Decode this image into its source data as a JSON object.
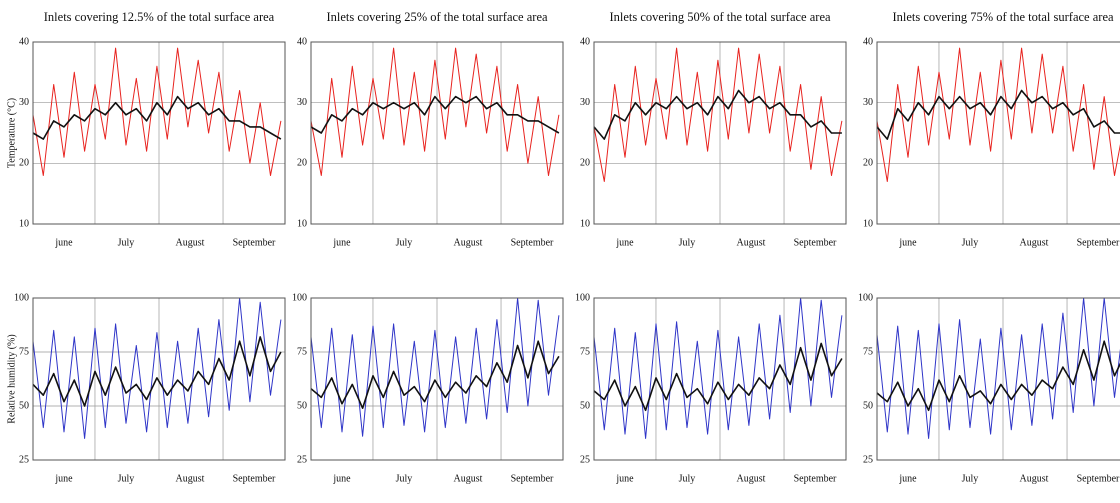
{
  "chart_data": [
    {
      "type": "line",
      "title": "Inlets covering 12.5% of the total surface area",
      "ylabel": "Temperature (°C)",
      "x": [
        0,
        5,
        10,
        15,
        20,
        25,
        30,
        35,
        40,
        45,
        50,
        55,
        60,
        65,
        70,
        75,
        80,
        85,
        90,
        95,
        100,
        105,
        110,
        115,
        120
      ],
      "series": [
        {
          "color": "#e8231f",
          "values": [
            28,
            18,
            33,
            21,
            35,
            22,
            33,
            24,
            39,
            23,
            34,
            22,
            36,
            24,
            39,
            26,
            37,
            25,
            35,
            22,
            32,
            20,
            30,
            18,
            27
          ]
        },
        {
          "color": "#111111",
          "values": [
            25,
            24,
            27,
            26,
            28,
            27,
            29,
            28,
            30,
            28,
            29,
            27,
            30,
            28,
            31,
            29,
            30,
            28,
            29,
            27,
            27,
            26,
            26,
            25,
            24
          ]
        }
      ],
      "xlim": [
        0,
        122
      ],
      "xticks": [
        {
          "value": 15,
          "label": "june"
        },
        {
          "value": 45,
          "label": "July"
        },
        {
          "value": 76,
          "label": "August"
        },
        {
          "value": 107,
          "label": "September"
        }
      ],
      "xgrid": [
        30,
        61,
        92
      ],
      "ylim": [
        10,
        40
      ],
      "yticks": [
        10,
        20,
        30,
        40
      ]
    },
    {
      "type": "line",
      "title": "Inlets covering 25% of the total surface area",
      "x": [
        0,
        5,
        10,
        15,
        20,
        25,
        30,
        35,
        40,
        45,
        50,
        55,
        60,
        65,
        70,
        75,
        80,
        85,
        90,
        95,
        100,
        105,
        110,
        115,
        120
      ],
      "series": [
        {
          "color": "#e8231f",
          "values": [
            27,
            18,
            34,
            21,
            36,
            23,
            34,
            24,
            39,
            23,
            35,
            22,
            37,
            24,
            39,
            26,
            38,
            25,
            36,
            22,
            33,
            20,
            31,
            18,
            28
          ]
        },
        {
          "color": "#111111",
          "values": [
            26,
            25,
            28,
            27,
            29,
            28,
            30,
            29,
            30,
            29,
            30,
            28,
            31,
            29,
            31,
            30,
            31,
            29,
            30,
            28,
            28,
            27,
            27,
            26,
            25
          ]
        }
      ],
      "xlim": [
        0,
        122
      ],
      "xticks": [
        {
          "value": 15,
          "label": "june"
        },
        {
          "value": 45,
          "label": "July"
        },
        {
          "value": 76,
          "label": "August"
        },
        {
          "value": 107,
          "label": "September"
        }
      ],
      "xgrid": [
        30,
        61,
        92
      ],
      "ylim": [
        10,
        40
      ],
      "yticks": [
        10,
        20,
        30,
        40
      ]
    },
    {
      "type": "line",
      "title": "Inlets covering 50% of the total surface area",
      "x": [
        0,
        5,
        10,
        15,
        20,
        25,
        30,
        35,
        40,
        45,
        50,
        55,
        60,
        65,
        70,
        75,
        80,
        85,
        90,
        95,
        100,
        105,
        110,
        115,
        120
      ],
      "series": [
        {
          "color": "#e8231f",
          "values": [
            26,
            17,
            33,
            21,
            36,
            23,
            34,
            24,
            39,
            23,
            35,
            22,
            37,
            24,
            39,
            25,
            38,
            25,
            36,
            22,
            33,
            19,
            31,
            18,
            27
          ]
        },
        {
          "color": "#111111",
          "values": [
            26,
            24,
            28,
            27,
            30,
            28,
            30,
            29,
            31,
            29,
            30,
            28,
            31,
            29,
            32,
            30,
            31,
            29,
            30,
            28,
            28,
            26,
            27,
            25,
            25
          ]
        }
      ],
      "xlim": [
        0,
        122
      ],
      "xticks": [
        {
          "value": 15,
          "label": "june"
        },
        {
          "value": 45,
          "label": "July"
        },
        {
          "value": 76,
          "label": "August"
        },
        {
          "value": 107,
          "label": "September"
        }
      ],
      "xgrid": [
        30,
        61,
        92
      ],
      "ylim": [
        10,
        40
      ],
      "yticks": [
        10,
        20,
        30,
        40
      ]
    },
    {
      "type": "line",
      "title": "Inlets covering 75% of the total surface area",
      "x": [
        0,
        5,
        10,
        15,
        20,
        25,
        30,
        35,
        40,
        45,
        50,
        55,
        60,
        65,
        70,
        75,
        80,
        85,
        90,
        95,
        100,
        105,
        110,
        115,
        120
      ],
      "series": [
        {
          "color": "#e8231f",
          "values": [
            27,
            17,
            33,
            21,
            36,
            23,
            35,
            24,
            39,
            23,
            35,
            22,
            37,
            24,
            39,
            25,
            38,
            25,
            36,
            22,
            33,
            19,
            31,
            18,
            27
          ]
        },
        {
          "color": "#111111",
          "values": [
            26,
            24,
            29,
            27,
            30,
            28,
            31,
            29,
            31,
            29,
            30,
            28,
            31,
            29,
            32,
            30,
            31,
            29,
            30,
            28,
            29,
            26,
            27,
            25,
            25
          ]
        }
      ],
      "xlim": [
        0,
        122
      ],
      "xticks": [
        {
          "value": 15,
          "label": "june"
        },
        {
          "value": 45,
          "label": "July"
        },
        {
          "value": 76,
          "label": "August"
        },
        {
          "value": 107,
          "label": "September"
        }
      ],
      "xgrid": [
        30,
        61,
        92
      ],
      "ylim": [
        10,
        40
      ],
      "yticks": [
        10,
        20,
        30,
        40
      ]
    },
    {
      "type": "line",
      "ylabel": "Relative humidity (%)",
      "x": [
        0,
        5,
        10,
        15,
        20,
        25,
        30,
        35,
        40,
        45,
        50,
        55,
        60,
        65,
        70,
        75,
        80,
        85,
        90,
        95,
        100,
        105,
        110,
        115,
        120
      ],
      "series": [
        {
          "color": "#2f35c8",
          "values": [
            80,
            40,
            85,
            38,
            82,
            35,
            86,
            40,
            88,
            42,
            78,
            38,
            84,
            40,
            80,
            42,
            86,
            45,
            90,
            48,
            100,
            52,
            98,
            55,
            90
          ]
        },
        {
          "color": "#111111",
          "values": [
            60,
            55,
            65,
            52,
            62,
            50,
            66,
            55,
            68,
            56,
            60,
            53,
            63,
            55,
            62,
            57,
            66,
            60,
            72,
            62,
            80,
            64,
            82,
            66,
            75
          ]
        }
      ],
      "xlim": [
        0,
        122
      ],
      "xticks": [
        {
          "value": 15,
          "label": "june"
        },
        {
          "value": 45,
          "label": "July"
        },
        {
          "value": 76,
          "label": "August"
        },
        {
          "value": 107,
          "label": "September"
        }
      ],
      "xgrid": [
        30,
        61,
        92
      ],
      "ylim": [
        25,
        100
      ],
      "yticks": [
        25,
        50,
        75,
        100
      ]
    },
    {
      "type": "line",
      "x": [
        0,
        5,
        10,
        15,
        20,
        25,
        30,
        35,
        40,
        45,
        50,
        55,
        60,
        65,
        70,
        75,
        80,
        85,
        90,
        95,
        100,
        105,
        110,
        115,
        120
      ],
      "series": [
        {
          "color": "#2f35c8",
          "values": [
            82,
            40,
            86,
            38,
            83,
            36,
            87,
            40,
            88,
            41,
            80,
            38,
            85,
            40,
            82,
            42,
            86,
            44,
            90,
            47,
            100,
            50,
            99,
            55,
            92
          ]
        },
        {
          "color": "#111111",
          "values": [
            58,
            54,
            63,
            51,
            60,
            49,
            64,
            54,
            66,
            55,
            59,
            52,
            62,
            54,
            61,
            56,
            64,
            59,
            70,
            61,
            78,
            63,
            80,
            65,
            73
          ]
        }
      ],
      "xlim": [
        0,
        122
      ],
      "xticks": [
        {
          "value": 15,
          "label": "june"
        },
        {
          "value": 45,
          "label": "July"
        },
        {
          "value": 76,
          "label": "August"
        },
        {
          "value": 107,
          "label": "September"
        }
      ],
      "xgrid": [
        30,
        61,
        92
      ],
      "ylim": [
        25,
        100
      ],
      "yticks": [
        25,
        50,
        75,
        100
      ]
    },
    {
      "type": "line",
      "x": [
        0,
        5,
        10,
        15,
        20,
        25,
        30,
        35,
        40,
        45,
        50,
        55,
        60,
        65,
        70,
        75,
        80,
        85,
        90,
        95,
        100,
        105,
        110,
        115,
        120
      ],
      "series": [
        {
          "color": "#2f35c8",
          "values": [
            82,
            39,
            86,
            37,
            84,
            35,
            88,
            39,
            89,
            40,
            80,
            37,
            85,
            39,
            82,
            41,
            88,
            44,
            92,
            47,
            100,
            50,
            99,
            54,
            92
          ]
        },
        {
          "color": "#111111",
          "values": [
            57,
            53,
            62,
            50,
            59,
            48,
            63,
            53,
            65,
            54,
            58,
            51,
            61,
            53,
            60,
            55,
            63,
            58,
            69,
            60,
            77,
            62,
            79,
            64,
            72
          ]
        }
      ],
      "xlim": [
        0,
        122
      ],
      "xticks": [
        {
          "value": 15,
          "label": "june"
        },
        {
          "value": 45,
          "label": "July"
        },
        {
          "value": 76,
          "label": "August"
        },
        {
          "value": 107,
          "label": "September"
        }
      ],
      "xgrid": [
        30,
        61,
        92
      ],
      "ylim": [
        25,
        100
      ],
      "yticks": [
        25,
        50,
        75,
        100
      ]
    },
    {
      "type": "line",
      "x": [
        0,
        5,
        10,
        15,
        20,
        25,
        30,
        35,
        40,
        45,
        50,
        55,
        60,
        65,
        70,
        75,
        80,
        85,
        90,
        95,
        100,
        105,
        110,
        115,
        120
      ],
      "series": [
        {
          "color": "#2f35c8",
          "values": [
            83,
            38,
            87,
            37,
            85,
            35,
            88,
            39,
            90,
            40,
            81,
            37,
            86,
            39,
            83,
            41,
            88,
            44,
            93,
            47,
            100,
            50,
            100,
            54,
            93
          ]
        },
        {
          "color": "#111111",
          "values": [
            56,
            52,
            61,
            50,
            58,
            48,
            62,
            52,
            64,
            54,
            57,
            51,
            60,
            53,
            60,
            55,
            62,
            58,
            68,
            60,
            76,
            62,
            80,
            64,
            74
          ]
        }
      ],
      "xlim": [
        0,
        122
      ],
      "xticks": [
        {
          "value": 15,
          "label": "june"
        },
        {
          "value": 45,
          "label": "July"
        },
        {
          "value": 76,
          "label": "August"
        },
        {
          "value": 107,
          "label": "September"
        }
      ],
      "xgrid": [
        30,
        61,
        92
      ],
      "ylim": [
        25,
        100
      ],
      "yticks": [
        25,
        50,
        75,
        100
      ]
    }
  ]
}
